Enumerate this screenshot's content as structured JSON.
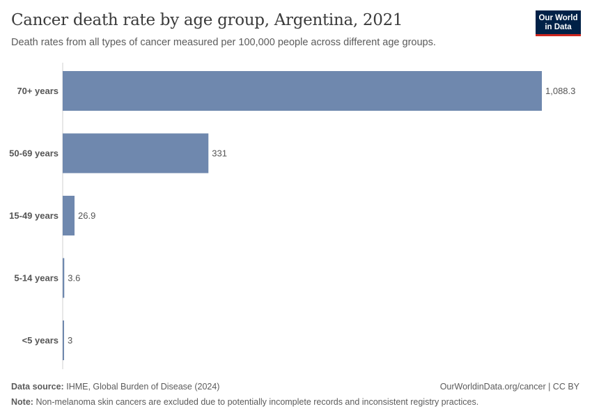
{
  "header": {
    "title": "Cancer death rate by age group, Argentina, 2021",
    "subtitle": "Death rates from all types of cancer measured per 100,000 people across different age groups."
  },
  "logo": {
    "line1": "Our World",
    "line2": "in Data"
  },
  "footer": {
    "source_label": "Data source:",
    "source_text": "IHME, Global Burden of Disease (2024)",
    "link": "OurWorldinData.org/cancer | CC BY",
    "note_label": "Note:",
    "note_text": "Non-melanoma skin cancers are excluded due to potentially incomplete records and inconsistent registry practices."
  },
  "colors": {
    "bar": "#6f88ae",
    "logo_bg": "#002147",
    "logo_accent": "#ce261e"
  },
  "chart_data": {
    "type": "bar",
    "orientation": "horizontal",
    "categories": [
      "70+ years",
      "50-69 years",
      "15-49 years",
      "5-14 years",
      "<5 years"
    ],
    "values": [
      1088.3,
      331,
      26.9,
      3.6,
      3
    ],
    "value_labels": [
      "1,088.3",
      "331",
      "26.9",
      "3.6",
      "3"
    ],
    "xlim": [
      0,
      1088.3
    ],
    "grid": false,
    "legend": "none"
  }
}
